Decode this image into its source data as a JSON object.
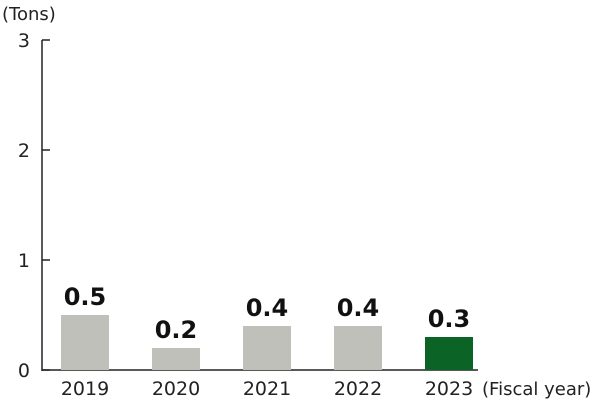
{
  "chart_data": {
    "type": "bar",
    "ylabel": "(Tons)",
    "xlabel": "(Fiscal year)",
    "ylim": [
      0,
      3
    ],
    "yticks": [
      0,
      1,
      2,
      3
    ],
    "categories": [
      "2019",
      "2020",
      "2021",
      "2022",
      "2023"
    ],
    "values": [
      0.5,
      0.2,
      0.4,
      0.4,
      0.3
    ],
    "data_labels": [
      "0.5",
      "0.2",
      "0.4",
      "0.4",
      "0.3"
    ],
    "highlight_index": 4,
    "colors": {
      "default": "#c0c0bb",
      "highlight": "#0b6325",
      "axis": "#222222"
    },
    "grid": false,
    "legend": "none"
  }
}
